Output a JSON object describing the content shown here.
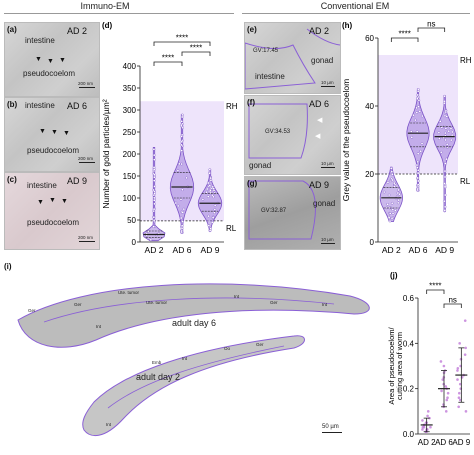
{
  "headers": {
    "left": "Immuno-EM",
    "right": "Conventional EM"
  },
  "panel_a": {
    "letter": "(a)",
    "day": "AD 2",
    "intestine": "intestine",
    "pseudo": "pseudocoelom",
    "scale": "200 nm"
  },
  "panel_b": {
    "letter": "(b)",
    "day": "AD 6",
    "intestine": "intestine",
    "pseudo": "pseudocoelom",
    "scale": "200 nm"
  },
  "panel_c": {
    "letter": "(c)",
    "day": "AD 9",
    "intestine": "intestine",
    "pseudo": "pseudocoelom",
    "scale": "200 nm"
  },
  "panel_e": {
    "letter": "(e)",
    "day": "AD 2",
    "gv": "GV:17.45",
    "gonad": "gonad",
    "intestine": "intestine",
    "scale": "10 µm"
  },
  "panel_f": {
    "letter": "(f)",
    "day": "AD 6",
    "gv": "GV:34.53",
    "gonad": "gonad",
    "scale": "10 µm"
  },
  "panel_g": {
    "letter": "(g)",
    "day": "AD 9",
    "gv": "GV:32.87",
    "gonad": "gonad",
    "scale": "10 µm"
  },
  "panel_i": {
    "letter": "(i)",
    "day6": "adult day 6",
    "day2": "adult day 2",
    "scale": "50 µm",
    "tissue_labels": [
      "Ger",
      "Ger",
      "Ute. tumor",
      "Ute. tumor",
      "Int",
      "Int",
      "Ger",
      "Int",
      "Emb",
      "Int",
      "Oo",
      "Ger",
      "Int"
    ]
  },
  "colors": {
    "purple": "#7b52c7",
    "shade": "#eee4fb",
    "violin": "#a07fdc"
  },
  "chart_data": [
    {
      "panel": "(d)",
      "type": "violin",
      "ylabel": "Number of gold particles/µm²",
      "categories": [
        "AD 2",
        "AD 6",
        "AD 9"
      ],
      "ylim": [
        0,
        400
      ],
      "yticks": [
        0,
        50,
        100,
        150,
        200,
        250,
        300,
        350,
        400
      ],
      "medians": [
        17,
        125,
        88
      ],
      "quartiles": [
        [
          10,
          25
        ],
        [
          100,
          158
        ],
        [
          70,
          110
        ]
      ],
      "ranges": [
        [
          3,
          215
        ],
        [
          20,
          290
        ],
        [
          25,
          165
        ]
      ],
      "reference_lines": [
        {
          "label": "RH",
          "y": 320
        },
        {
          "label": "RL",
          "y": 48
        }
      ],
      "significance": [
        {
          "from": 0,
          "to": 1,
          "label": "****"
        },
        {
          "from": 1,
          "to": 2,
          "label": "****"
        },
        {
          "from": 0,
          "to": 2,
          "label": "****"
        }
      ]
    },
    {
      "panel": "(h)",
      "type": "violin",
      "ylabel": "Grey value of the pseudocoelom",
      "categories": [
        "AD 2",
        "AD 6",
        "AD 9"
      ],
      "ylim": [
        0,
        60
      ],
      "yticks": [
        0,
        20,
        40,
        60
      ],
      "medians": [
        13,
        32,
        31
      ],
      "quartiles": [
        [
          10,
          16
        ],
        [
          28,
          35
        ],
        [
          28,
          34
        ]
      ],
      "ranges": [
        [
          6,
          22
        ],
        [
          15,
          45
        ],
        [
          9,
          43
        ]
      ],
      "reference_lines": [
        {
          "label": "RH",
          "y": 55
        },
        {
          "label": "RL",
          "y": 20
        }
      ],
      "significance": [
        {
          "from": 0,
          "to": 1,
          "label": "****"
        },
        {
          "from": 1,
          "to": 2,
          "label": "ns"
        }
      ]
    },
    {
      "panel": "(j)",
      "type": "scatter",
      "ylabel": "Area of pseudocoelom/cutting area of worm",
      "categories": [
        "AD 2",
        "AD 6",
        "AD 9"
      ],
      "ylim": [
        0,
        0.6
      ],
      "yticks": [
        0.0,
        0.2,
        0.4,
        0.6
      ],
      "means": [
        0.04,
        0.2,
        0.26
      ],
      "sd": [
        0.03,
        0.08,
        0.12
      ],
      "points": [
        [
          0.01,
          0.02,
          0.03,
          0.04,
          0.05,
          0.02,
          0.06,
          0.03,
          0.08,
          0.01,
          0.04,
          0.07,
          0.1,
          0.02,
          0.05,
          0.03
        ],
        [
          0.1,
          0.12,
          0.15,
          0.18,
          0.2,
          0.22,
          0.25,
          0.28,
          0.3,
          0.16,
          0.24,
          0.19,
          0.13,
          0.27,
          0.32,
          0.21
        ],
        [
          0.1,
          0.15,
          0.2,
          0.25,
          0.28,
          0.3,
          0.35,
          0.4,
          0.22,
          0.18,
          0.33,
          0.26,
          0.12,
          0.38,
          0.5,
          0.24,
          0.29,
          0.16
        ]
      ],
      "significance": [
        {
          "from": 0,
          "to": 1,
          "label": "****"
        },
        {
          "from": 1,
          "to": 2,
          "label": "ns"
        }
      ]
    }
  ]
}
